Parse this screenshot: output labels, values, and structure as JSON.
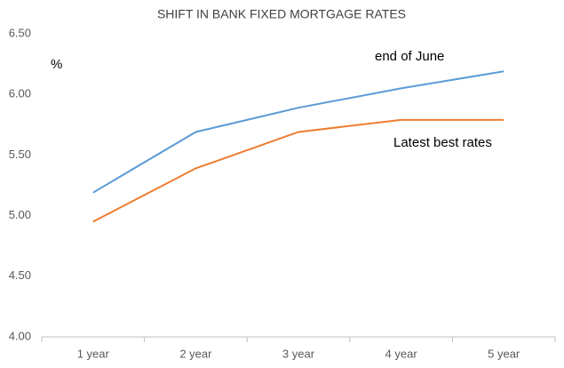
{
  "chart_data": {
    "type": "line",
    "title": "SHIFT IN BANK FIXED MORTGAGE RATES",
    "y_label": "%",
    "categories": [
      "1 year",
      "2 year",
      "3 year",
      "4 year",
      "5 year"
    ],
    "series": [
      {
        "name": "end of June",
        "color": "#5b9bd5",
        "values": [
          5.19,
          5.69,
          5.89,
          6.05,
          6.19
        ]
      },
      {
        "name": "Latest best rates",
        "color": "#ed7d31",
        "values": [
          4.95,
          5.39,
          5.69,
          5.79,
          5.79
        ]
      }
    ],
    "ylim": [
      4,
      6.5
    ],
    "yticks": [
      {
        "value": 4,
        "label": "4.00"
      },
      {
        "value": 4.5,
        "label": "4.50"
      },
      {
        "value": 5,
        "label": "5.00"
      },
      {
        "value": 5.5,
        "label": "5.50"
      },
      {
        "value": 6,
        "label": "6.00"
      },
      {
        "value": 6.5,
        "label": "6.50"
      }
    ],
    "grid": false
  }
}
